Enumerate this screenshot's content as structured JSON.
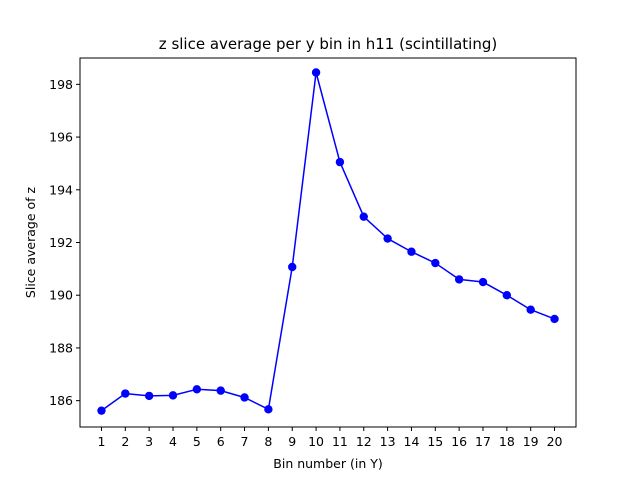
{
  "chart_data": {
    "type": "line",
    "title": "z slice average per y bin in h11 (scintillating)",
    "xlabel": "Bin number (in Y)",
    "ylabel": "Slice average of z",
    "xlim": [
      0.1,
      20.9
    ],
    "ylim": [
      185.0,
      199.0
    ],
    "x_ticks": [
      1,
      2,
      3,
      4,
      5,
      6,
      7,
      8,
      9,
      10,
      11,
      12,
      13,
      14,
      15,
      16,
      17,
      18,
      19,
      20
    ],
    "y_ticks": [
      186,
      188,
      190,
      192,
      194,
      196,
      198
    ],
    "grid": false,
    "series": [
      {
        "color": "#0000ff",
        "marker": "circle",
        "x": [
          1,
          2,
          3,
          4,
          5,
          6,
          7,
          8,
          9,
          10,
          11,
          12,
          13,
          14,
          15,
          16,
          17,
          18,
          19,
          20
        ],
        "y": [
          185.62,
          186.27,
          186.18,
          186.2,
          186.43,
          186.38,
          186.12,
          185.67,
          191.07,
          198.45,
          195.05,
          192.98,
          192.15,
          191.65,
          191.22,
          190.6,
          190.5,
          190.0,
          189.45,
          189.1
        ]
      }
    ]
  }
}
